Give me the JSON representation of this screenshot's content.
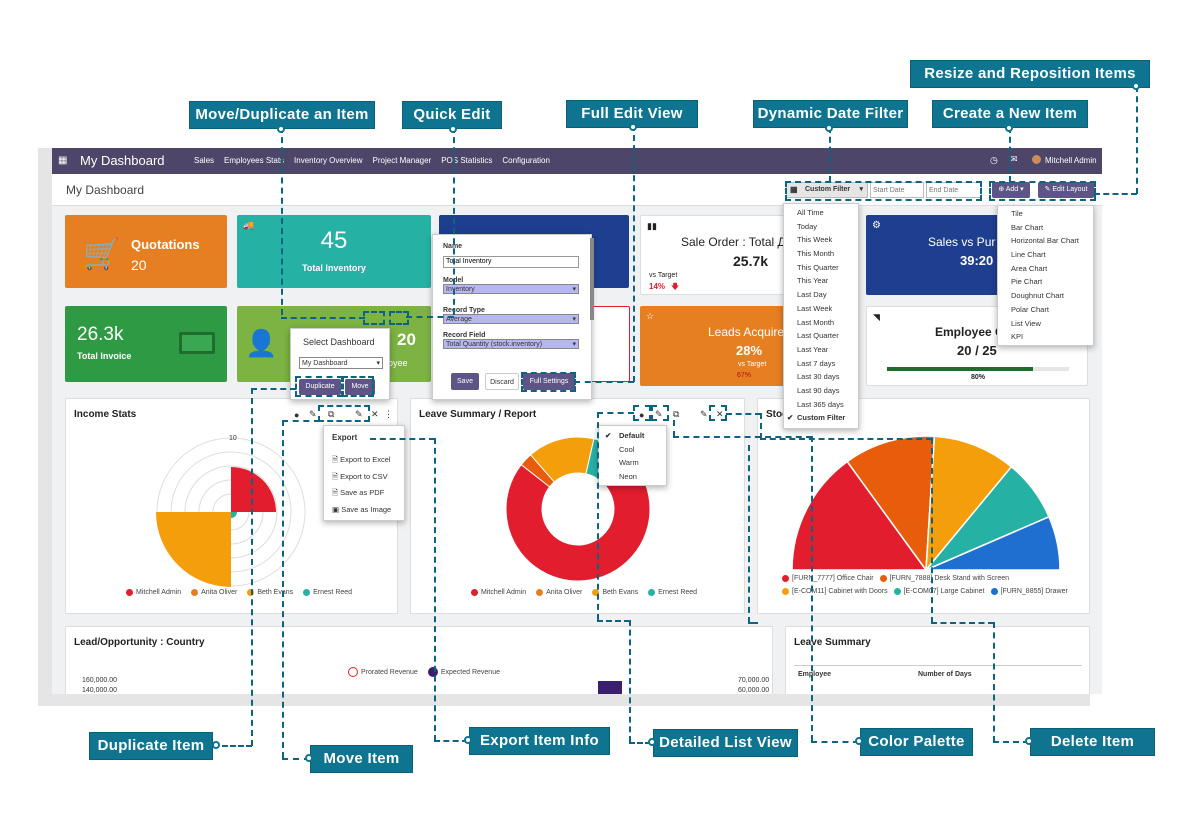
{
  "callouts": {
    "resize": "Resize and Reposition Items",
    "move_dup": "Move/Duplicate an Item",
    "quick_edit": "Quick Edit",
    "full_edit": "Full Edit View",
    "date_filter": "Dynamic Date Filter",
    "create": "Create a New Item",
    "duplicate": "Duplicate Item",
    "move": "Move Item",
    "export_info": "Export Item Info",
    "list_view": "Detailed List View",
    "palette": "Color Palette",
    "delete": "Delete Item"
  },
  "nav": {
    "title": "My Dashboard",
    "menu": [
      "Sales",
      "Employees Stats",
      "Inventory Overview",
      "Project Manager",
      "POS Statistics",
      "Configuration"
    ],
    "user": "Mitchell Admin"
  },
  "subbar": {
    "title": "My Dashboard",
    "filter": "Custom Filter",
    "start_placeholder": "Start Date",
    "end_placeholder": "End Date",
    "add": "Add",
    "edit_layout": "Edit Layout"
  },
  "tiles": {
    "quotations": {
      "label": "Quotations",
      "value": "20"
    },
    "inventory": {
      "label": "Total Inventory",
      "value": "45"
    },
    "invoice": {
      "label": "Total Invoice",
      "value": "26.3k"
    },
    "employee": {
      "value": "20",
      "label": "ployee"
    },
    "sale_order": {
      "label": "Sale Order : Total Д",
      "value": "25.7k",
      "vs": "vs Target",
      "pct": "14%"
    },
    "sales_vs": {
      "label": "Sales vs Pur",
      "value": "39:20"
    },
    "leads": {
      "label": "Leads Acquire",
      "value": "28%",
      "vs": "vs Target",
      "pct": "67%"
    },
    "emp_g": {
      "label": "Employee G",
      "value": "20 / 25",
      "pct": "80%"
    }
  },
  "date_options": [
    "All Time",
    "Today",
    "This Week",
    "This Month",
    "This Quarter",
    "This Year",
    "Last Day",
    "Last Week",
    "Last Month",
    "Last Quarter",
    "Last Year",
    "Last 7 days",
    "Last 30 days",
    "Last 90 days",
    "Last 365 days",
    "Custom Filter"
  ],
  "add_options": [
    "Tile",
    "Bar Chart",
    "Horizontal Bar Chart",
    "Line Chart",
    "Area Chart",
    "Pie Chart",
    "Doughnut Chart",
    "Polar Chart",
    "List View",
    "KPI"
  ],
  "quick_edit_form": {
    "name_label": "Name",
    "name_value": "Total Inventory",
    "model_label": "Model",
    "model_value": "Inventory",
    "type_label": "Record Type",
    "type_value": "Average",
    "field_label": "Record Field",
    "field_value": "Total Quantity (stock.inventory)",
    "save": "Save",
    "discard": "Discard",
    "full": "Full Settings"
  },
  "select_dashboard": {
    "title": "Select Dashboard",
    "value": "My Dashboard",
    "duplicate": "Duplicate",
    "move": "Move"
  },
  "export_menu": {
    "title": "Export",
    "items": [
      "Export to Excel",
      "Export to CSV",
      "Save as PDF",
      "Save as Image"
    ]
  },
  "palette_menu": [
    "Default",
    "Cool",
    "Warm",
    "Neon"
  ],
  "charts": {
    "income": {
      "title": "Income Stats",
      "tick": "10",
      "legend": [
        "Mitchell Admin",
        "Anita Oliver",
        "Beth Evans",
        "Ernest Reed"
      ]
    },
    "leave": {
      "title": "Leave Summary / Report",
      "legend": [
        "Mitchell Admin",
        "Anita Oliver",
        "Beth Evans",
        "Ernest Reed"
      ]
    },
    "stock": {
      "title": "Stoc",
      "legend": [
        "[FURN_7777] Office Chair",
        "[FURN_7888] Desk Stand with Screen",
        "[E-COM11] Cabinet with Doors",
        "[E-COM07] Large Cabinet",
        "[FURN_8855] Drawer"
      ]
    },
    "lead": {
      "title": "Lead/Opportunity : Country",
      "legend": [
        "Prorated Revenue",
        "Expected Revenue"
      ],
      "y_left": [
        "160,000.00",
        "140,000.00"
      ],
      "y_right": [
        "70,000.00",
        "60,000.00"
      ]
    },
    "leave_summary": {
      "title": "Leave Summary",
      "col1": "Employee",
      "col2": "Number of Days"
    }
  },
  "colors": {
    "accent": "#0e7490",
    "nav": "#4d4669",
    "red": "#e11d2e",
    "orange": "#f59e0b",
    "teal": "#26b1a5",
    "blue": "#1f6fd1"
  },
  "chart_data": [
    {
      "type": "pie",
      "title": "Leave Summary / Report",
      "categories": [
        "Mitchell Admin",
        "Anita Oliver",
        "Beth Evans",
        "Ernest Reed"
      ],
      "values": [
        76,
        3,
        15,
        6
      ]
    },
    {
      "type": "pie",
      "title": "",
      "categories": [
        "[FURN_7777] Office Chair",
        "[FURN_7888] Desk Stand with Screen",
        "[E-COM11] Cabinet with Doors",
        "[E-COM07] Large Cabinet",
        "[FURN_8855] Drawer"
      ],
      "values": [
        30,
        22,
        20,
        15,
        13
      ]
    }
  ]
}
